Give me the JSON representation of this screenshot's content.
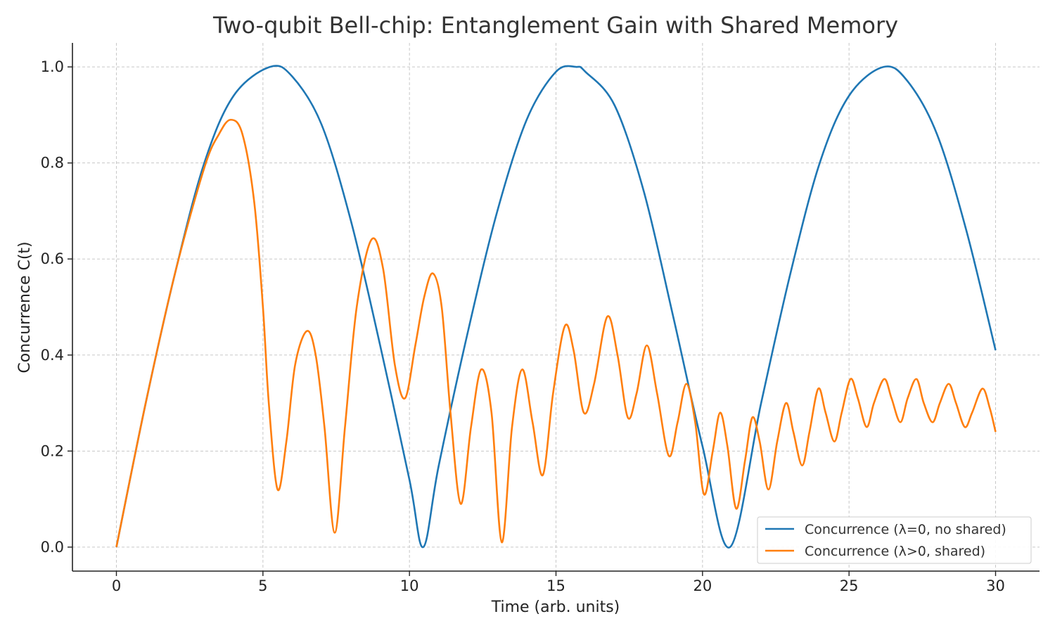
{
  "chart_data": {
    "type": "line",
    "title": "Two-qubit Bell-chip: Entanglement Gain with Shared Memory",
    "xlabel": "Time (arb. units)",
    "ylabel": "Concurrence C(t)",
    "xlim": [
      -1.5,
      31.5
    ],
    "ylim": [
      -0.05,
      1.05
    ],
    "xticks": [
      0,
      5,
      10,
      15,
      20,
      25,
      30
    ],
    "xtick_labels": [
      "0",
      "5",
      "10",
      "15",
      "20",
      "25",
      "30"
    ],
    "yticks": [
      0.0,
      0.2,
      0.4,
      0.6,
      0.8,
      1.0
    ],
    "ytick_labels": [
      "0.0",
      "0.2",
      "0.4",
      "0.6",
      "0.8",
      "1.0"
    ],
    "grid": true,
    "legend_position": "lower-right",
    "series": [
      {
        "name": "Concurrence (λ=0, no shared)",
        "color": "#1f77b4",
        "points": [
          [
            0,
            0
          ],
          [
            1,
            0.3
          ],
          [
            2,
            0.57
          ],
          [
            3,
            0.8
          ],
          [
            4,
            0.94
          ],
          [
            5.24,
            1.0
          ],
          [
            6,
            0.98
          ],
          [
            7,
            0.88
          ],
          [
            8,
            0.68
          ],
          [
            9,
            0.42
          ],
          [
            10,
            0.14
          ],
          [
            10.47,
            0.0
          ],
          [
            11,
            0.17
          ],
          [
            12,
            0.45
          ],
          [
            13,
            0.7
          ],
          [
            14,
            0.89
          ],
          [
            15,
            0.99
          ],
          [
            15.7,
            1.0
          ],
          [
            16,
            0.99
          ],
          [
            17,
            0.92
          ],
          [
            18,
            0.74
          ],
          [
            19,
            0.48
          ],
          [
            20,
            0.21
          ],
          [
            20.94,
            0.0
          ],
          [
            22,
            0.3
          ],
          [
            23,
            0.57
          ],
          [
            24,
            0.8
          ],
          [
            25,
            0.94
          ],
          [
            26.18,
            1.0
          ],
          [
            27,
            0.97
          ],
          [
            28,
            0.86
          ],
          [
            29,
            0.66
          ],
          [
            30,
            0.41
          ]
        ]
      },
      {
        "name": "Concurrence (λ>0, shared)",
        "color": "#ff7f0e",
        "points": [
          [
            0,
            0
          ],
          [
            1,
            0.3
          ],
          [
            2,
            0.57
          ],
          [
            3,
            0.79
          ],
          [
            3.5,
            0.86
          ],
          [
            3.9,
            0.89
          ],
          [
            4.3,
            0.86
          ],
          [
            4.7,
            0.72
          ],
          [
            5.0,
            0.5
          ],
          [
            5.2,
            0.3
          ],
          [
            5.5,
            0.12
          ],
          [
            5.8,
            0.22
          ],
          [
            6.1,
            0.38
          ],
          [
            6.5,
            0.45
          ],
          [
            6.8,
            0.4
          ],
          [
            7.1,
            0.25
          ],
          [
            7.45,
            0.03
          ],
          [
            7.8,
            0.25
          ],
          [
            8.2,
            0.5
          ],
          [
            8.7,
            0.64
          ],
          [
            9.1,
            0.58
          ],
          [
            9.5,
            0.38
          ],
          [
            9.85,
            0.31
          ],
          [
            10.2,
            0.42
          ],
          [
            10.5,
            0.52
          ],
          [
            10.8,
            0.57
          ],
          [
            11.1,
            0.5
          ],
          [
            11.4,
            0.28
          ],
          [
            11.75,
            0.09
          ],
          [
            12.1,
            0.25
          ],
          [
            12.45,
            0.37
          ],
          [
            12.8,
            0.28
          ],
          [
            13.15,
            0.01
          ],
          [
            13.5,
            0.25
          ],
          [
            13.85,
            0.37
          ],
          [
            14.2,
            0.26
          ],
          [
            14.55,
            0.15
          ],
          [
            14.9,
            0.32
          ],
          [
            15.3,
            0.46
          ],
          [
            15.6,
            0.41
          ],
          [
            15.95,
            0.28
          ],
          [
            16.3,
            0.34
          ],
          [
            16.75,
            0.48
          ],
          [
            17.1,
            0.4
          ],
          [
            17.45,
            0.27
          ],
          [
            17.75,
            0.32
          ],
          [
            18.1,
            0.42
          ],
          [
            18.45,
            0.32
          ],
          [
            18.85,
            0.19
          ],
          [
            19.15,
            0.26
          ],
          [
            19.45,
            0.34
          ],
          [
            19.75,
            0.26
          ],
          [
            20.05,
            0.11
          ],
          [
            20.35,
            0.2
          ],
          [
            20.6,
            0.28
          ],
          [
            20.85,
            0.21
          ],
          [
            21.15,
            0.08
          ],
          [
            21.45,
            0.18
          ],
          [
            21.7,
            0.27
          ],
          [
            21.95,
            0.22
          ],
          [
            22.25,
            0.12
          ],
          [
            22.55,
            0.22
          ],
          [
            22.85,
            0.3
          ],
          [
            23.1,
            0.24
          ],
          [
            23.4,
            0.17
          ],
          [
            23.65,
            0.24
          ],
          [
            23.95,
            0.33
          ],
          [
            24.2,
            0.28
          ],
          [
            24.5,
            0.22
          ],
          [
            24.75,
            0.28
          ],
          [
            25.05,
            0.35
          ],
          [
            25.3,
            0.31
          ],
          [
            25.6,
            0.25
          ],
          [
            25.85,
            0.3
          ],
          [
            26.2,
            0.35
          ],
          [
            26.45,
            0.31
          ],
          [
            26.75,
            0.26
          ],
          [
            27.0,
            0.31
          ],
          [
            27.3,
            0.35
          ],
          [
            27.55,
            0.3
          ],
          [
            27.85,
            0.26
          ],
          [
            28.1,
            0.3
          ],
          [
            28.4,
            0.34
          ],
          [
            28.65,
            0.3
          ],
          [
            28.95,
            0.25
          ],
          [
            29.2,
            0.28
          ],
          [
            29.55,
            0.33
          ],
          [
            29.8,
            0.29
          ],
          [
            30,
            0.24
          ]
        ]
      }
    ]
  }
}
